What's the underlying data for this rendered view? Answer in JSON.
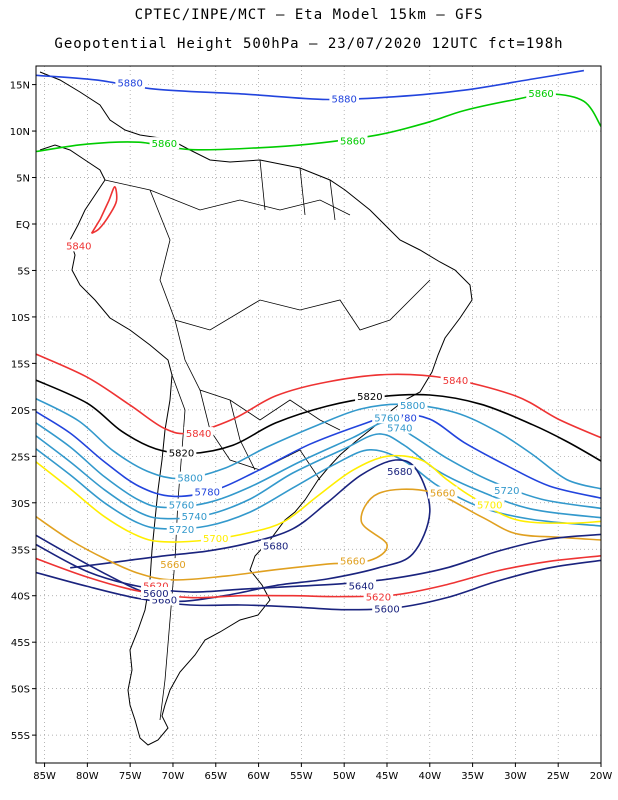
{
  "title_line1": "CPTEC/INPE/MCT –  Eta Model 15km – GFS",
  "title_line2": "Geopotential Height 500hPa – 23/07/2020 12UTC fct=198h",
  "map": {
    "lon_range": [
      -86,
      -20
    ],
    "lat_range": [
      -58,
      17
    ],
    "lat_ticks": [
      "15N",
      "10N",
      "5N",
      "EQ",
      "5S",
      "10S",
      "15S",
      "20S",
      "25S",
      "30S",
      "35S",
      "40S",
      "45S",
      "50S",
      "55S"
    ],
    "lat_values": [
      15,
      10,
      5,
      0,
      -5,
      -10,
      -15,
      -20,
      -25,
      -30,
      -35,
      -40,
      -45,
      -50,
      -55
    ],
    "lon_ticks": [
      "85W",
      "80W",
      "75W",
      "70W",
      "65W",
      "60W",
      "55W",
      "50W",
      "45W",
      "40W",
      "35W",
      "30W",
      "25W",
      "20W"
    ],
    "lon_values": [
      -85,
      -80,
      -75,
      -70,
      -65,
      -60,
      -55,
      -50,
      -45,
      -40,
      -35,
      -30,
      -25,
      -20
    ],
    "grid": true
  },
  "contours": [
    {
      "value": "5880",
      "color": "#2244dd",
      "pts": [
        [
          -86,
          16
        ],
        [
          -79,
          15.5
        ],
        [
          -72,
          14.5
        ],
        [
          -62,
          14
        ],
        [
          -52,
          13.4
        ],
        [
          -44,
          13.7
        ],
        [
          -36,
          14.4
        ],
        [
          -28,
          15.6
        ],
        [
          -22,
          16.5
        ]
      ],
      "labels": [
        [
          -75,
          15.2
        ],
        [
          -50,
          13.5
        ]
      ]
    },
    {
      "value": "5860",
      "color": "#00cc00",
      "pts": [
        [
          -86,
          7.8
        ],
        [
          -80,
          8.6
        ],
        [
          -74,
          8.8
        ],
        [
          -68,
          8.0
        ],
        [
          -60,
          8.2
        ],
        [
          -54,
          8.6
        ],
        [
          -46,
          9.6
        ],
        [
          -40,
          11.0
        ],
        [
          -36,
          12.2
        ],
        [
          -30,
          13.4
        ],
        [
          -26,
          14.0
        ],
        [
          -22,
          13.2
        ],
        [
          -20,
          10.5
        ]
      ],
      "labels": [
        [
          -71,
          8.7
        ],
        [
          -49,
          9.0
        ],
        [
          -27,
          14.1
        ]
      ]
    },
    {
      "value": "5840",
      "color": "#ee3333",
      "pts": [
        [
          -86,
          -14
        ],
        [
          -80,
          -16.5
        ],
        [
          -75,
          -19.5
        ],
        [
          -71,
          -22
        ],
        [
          -68,
          -22.5
        ],
        [
          -63,
          -21
        ],
        [
          -58,
          -18.5
        ],
        [
          -52,
          -17
        ],
        [
          -45,
          -16.2
        ],
        [
          -38,
          -16.6
        ],
        [
          -30,
          -18.5
        ],
        [
          -25,
          -21
        ],
        [
          -20,
          -23
        ]
      ],
      "labels": [
        [
          -67,
          -22.5
        ],
        [
          -37,
          -16.8
        ]
      ]
    },
    {
      "value": "5820",
      "color": "#000000",
      "pts": [
        [
          -86,
          -16.8
        ],
        [
          -80,
          -19.3
        ],
        [
          -76,
          -22.3
        ],
        [
          -72,
          -24.2
        ],
        [
          -68,
          -24.7
        ],
        [
          -63,
          -23.8
        ],
        [
          -58,
          -21.4
        ],
        [
          -52,
          -19.6
        ],
        [
          -46,
          -18.6
        ],
        [
          -40,
          -18.4
        ],
        [
          -34,
          -19.4
        ],
        [
          -28,
          -21.6
        ],
        [
          -24,
          -23.4
        ],
        [
          -20,
          -25.5
        ]
      ],
      "labels": [
        [
          -69,
          -24.6
        ],
        [
          -47,
          -18.5
        ]
      ]
    },
    {
      "value": "5800",
      "color": "#3399cc",
      "pts": [
        [
          -86,
          -18.8
        ],
        [
          -81,
          -21.2
        ],
        [
          -77,
          -24.4
        ],
        [
          -73,
          -26.6
        ],
        [
          -69,
          -27.4
        ],
        [
          -64,
          -26.3
        ],
        [
          -59,
          -24.0
        ],
        [
          -53,
          -21.6
        ],
        [
          -48,
          -19.9
        ],
        [
          -43,
          -19.4
        ],
        [
          -37,
          -20.3
        ],
        [
          -32,
          -22.4
        ],
        [
          -28,
          -24.8
        ],
        [
          -24,
          -27.5
        ],
        [
          -20,
          -28.5
        ]
      ],
      "labels": [
        [
          -68,
          -27.3
        ],
        [
          -42,
          -19.5
        ]
      ]
    },
    {
      "value": "5780",
      "color": "#2244dd",
      "pts": [
        [
          -86,
          -20.2
        ],
        [
          -82,
          -22.5
        ],
        [
          -78,
          -25.6
        ],
        [
          -74,
          -28.2
        ],
        [
          -70,
          -29.3
        ],
        [
          -65,
          -28.6
        ],
        [
          -60,
          -26.5
        ],
        [
          -54,
          -23.7
        ],
        [
          -48,
          -21.6
        ],
        [
          -44,
          -20.5
        ],
        [
          -40,
          -21.0
        ],
        [
          -36,
          -23.5
        ],
        [
          -31,
          -26.0
        ],
        [
          -26,
          -28.2
        ],
        [
          -20,
          -29.5
        ]
      ],
      "labels": [
        [
          -66,
          -28.8
        ],
        [
          -43,
          -20.8
        ]
      ]
    },
    {
      "value": "5760",
      "color": "#3399cc",
      "pts": [
        [
          -86,
          -21.4
        ],
        [
          -82,
          -24.0
        ],
        [
          -78,
          -27.2
        ],
        [
          -74,
          -29.7
        ],
        [
          -71,
          -30.5
        ],
        [
          -66,
          -30.0
        ],
        [
          -61,
          -28.3
        ],
        [
          -55,
          -25.5
        ],
        [
          -49,
          -23.0
        ],
        [
          -45,
          -21.3
        ],
        [
          -42,
          -22.8
        ],
        [
          -38,
          -25.2
        ],
        [
          -33,
          -27.6
        ],
        [
          -27,
          -29.6
        ],
        [
          -20,
          -30.6
        ]
      ],
      "labels": [
        [
          -69,
          -30.2
        ],
        [
          -45,
          -20.8
        ]
      ]
    },
    {
      "value": "5740",
      "color": "#3399cc",
      "pts": [
        [
          -86,
          -22.8
        ],
        [
          -82,
          -25.6
        ],
        [
          -78,
          -28.6
        ],
        [
          -74,
          -31.0
        ],
        [
          -71,
          -31.7
        ],
        [
          -66,
          -31.3
        ],
        [
          -61,
          -29.6
        ],
        [
          -56,
          -26.8
        ],
        [
          -50,
          -24.2
        ],
        [
          -46,
          -22.6
        ],
        [
          -43,
          -23.8
        ],
        [
          -39,
          -26.6
        ],
        [
          -34,
          -28.8
        ],
        [
          -28,
          -30.7
        ],
        [
          -20,
          -31.6
        ]
      ],
      "labels": [
        [
          -67.5,
          -31.4
        ],
        [
          -43.5,
          -21.9
        ]
      ]
    },
    {
      "value": "5720",
      "color": "#3399cc",
      "pts": [
        [
          -86,
          -24.2
        ],
        [
          -82,
          -27.0
        ],
        [
          -78,
          -30.0
        ],
        [
          -74,
          -32.2
        ],
        [
          -71,
          -32.8
        ],
        [
          -66,
          -32.5
        ],
        [
          -61,
          -31.0
        ],
        [
          -56,
          -28.4
        ],
        [
          -51,
          -25.8
        ],
        [
          -47,
          -24.3
        ],
        [
          -43,
          -25.5
        ],
        [
          -39,
          -28.2
        ],
        [
          -34,
          -30.5
        ],
        [
          -28,
          -31.8
        ],
        [
          -20,
          -32.5
        ]
      ],
      "labels": [
        [
          -69,
          -32.8
        ],
        [
          -31,
          -28.6
        ]
      ]
    },
    {
      "value": "5700",
      "color": "#ffee00",
      "pts": [
        [
          -86,
          -25.6
        ],
        [
          -82,
          -28.5
        ],
        [
          -78,
          -31.5
        ],
        [
          -74,
          -33.6
        ],
        [
          -71,
          -34.2
        ],
        [
          -66,
          -34.0
        ],
        [
          -61,
          -33.2
        ],
        [
          -57,
          -32.0
        ],
        [
          -53,
          -29.2
        ],
        [
          -49,
          -26.5
        ],
        [
          -45,
          -25.0
        ],
        [
          -41,
          -25.4
        ],
        [
          -38,
          -27.5
        ],
        [
          -35,
          -29.4
        ],
        [
          -30,
          -31.8
        ],
        [
          -24,
          -32.2
        ],
        [
          -20,
          -32.0
        ]
      ],
      "labels": [
        [
          -65,
          -33.8
        ],
        [
          -33,
          -30.2
        ]
      ]
    },
    {
      "value": "5680",
      "color": "#1a237e",
      "pts": [
        [
          -86,
          -33.5
        ],
        [
          -82,
          -35.6
        ],
        [
          -78,
          -37.6
        ],
        [
          -74,
          -39.4
        ],
        [
          -70,
          -40.6
        ],
        [
          -64,
          -40.0
        ],
        [
          -58,
          -38.9
        ],
        [
          -52,
          -38.2
        ],
        [
          -46,
          -37.0
        ],
        [
          -42,
          -35.5
        ],
        [
          -40,
          -31.0
        ],
        [
          -41.5,
          -26.5
        ],
        [
          -44,
          -25.4
        ],
        [
          -48,
          -27.0
        ],
        [
          -52,
          -30.0
        ],
        [
          -56,
          -32.8
        ],
        [
          -61,
          -34.3
        ],
        [
          -66,
          -35.2
        ],
        [
          -71,
          -35.7
        ],
        [
          -76,
          -36.3
        ],
        [
          -82,
          -37.0
        ]
      ],
      "labels": [
        [
          -58,
          -34.6
        ],
        [
          -43.5,
          -26.6
        ],
        [
          -71,
          -40.4
        ]
      ]
    },
    {
      "value": "5660",
      "color": "#e0a020",
      "pts": [
        [
          -86,
          -31.5
        ],
        [
          -82,
          -34.0
        ],
        [
          -78,
          -36.0
        ],
        [
          -74,
          -37.6
        ],
        [
          -70,
          -38.3
        ],
        [
          -64,
          -37.9
        ],
        [
          -58,
          -37.2
        ],
        [
          -52,
          -36.6
        ],
        [
          -47,
          -36.2
        ],
        [
          -45,
          -34.5
        ],
        [
          -48,
          -32.0
        ],
        [
          -46,
          -29.0
        ],
        [
          -40,
          -28.8
        ],
        [
          -34,
          -31.5
        ],
        [
          -30,
          -33.3
        ],
        [
          -25,
          -33.7
        ],
        [
          -20,
          -34.0
        ]
      ],
      "labels": [
        [
          -70,
          -36.6
        ],
        [
          -49,
          -36.2
        ],
        [
          -38.5,
          -28.9
        ]
      ]
    },
    {
      "value": "5640",
      "color": "#1a237e",
      "pts": [
        [
          -86,
          -34.5
        ],
        [
          -80,
          -37.4
        ],
        [
          -74,
          -39.0
        ],
        [
          -68,
          -39.6
        ],
        [
          -62,
          -39.3
        ],
        [
          -56,
          -39.0
        ],
        [
          -50,
          -38.7
        ],
        [
          -44,
          -38.1
        ],
        [
          -38,
          -37.0
        ],
        [
          -32,
          -35.2
        ],
        [
          -26,
          -33.9
        ],
        [
          -20,
          -33.4
        ]
      ],
      "labels": [
        [
          -48,
          -38.9
        ]
      ]
    },
    {
      "value": "5620",
      "color": "#ee3333",
      "pts": [
        [
          -86,
          -36.0
        ],
        [
          -80,
          -38.0
        ],
        [
          -74,
          -39.5
        ],
        [
          -68,
          -40.2
        ],
        [
          -62,
          -40.0
        ],
        [
          -56,
          -40.0
        ],
        [
          -50,
          -40.1
        ],
        [
          -44,
          -39.9
        ],
        [
          -38,
          -38.8
        ],
        [
          -32,
          -37.3
        ],
        [
          -26,
          -36.3
        ],
        [
          -20,
          -35.7
        ]
      ],
      "labels": [
        [
          -72,
          -38.9
        ],
        [
          -46,
          -40.1
        ]
      ]
    },
    {
      "value": "5600",
      "color": "#1a237e",
      "pts": [
        [
          -86,
          -37.5
        ],
        [
          -80,
          -39.0
        ],
        [
          -74,
          -40.3
        ],
        [
          -68,
          -41.0
        ],
        [
          -62,
          -41.0
        ],
        [
          -56,
          -41.2
        ],
        [
          -50,
          -41.5
        ],
        [
          -44,
          -41.3
        ],
        [
          -38,
          -40.2
        ],
        [
          -32,
          -38.4
        ],
        [
          -26,
          -37.0
        ],
        [
          -20,
          -36.2
        ]
      ],
      "labels": [
        [
          -72,
          -39.7
        ],
        [
          -45,
          -41.4
        ]
      ]
    }
  ],
  "amazon_5840": {
    "value": "5840",
    "color": "#ee3333",
    "pts": [
      [
        -78.5,
        0.5
      ],
      [
        -77.5,
        2.5
      ],
      [
        -76.8,
        4.0
      ],
      [
        -76.6,
        2.5
      ],
      [
        -77.4,
        1.0
      ],
      [
        -78.6,
        -0.5
      ],
      [
        -79.5,
        -1.0
      ]
    ],
    "label": [
      -81,
      -2.3
    ]
  }
}
